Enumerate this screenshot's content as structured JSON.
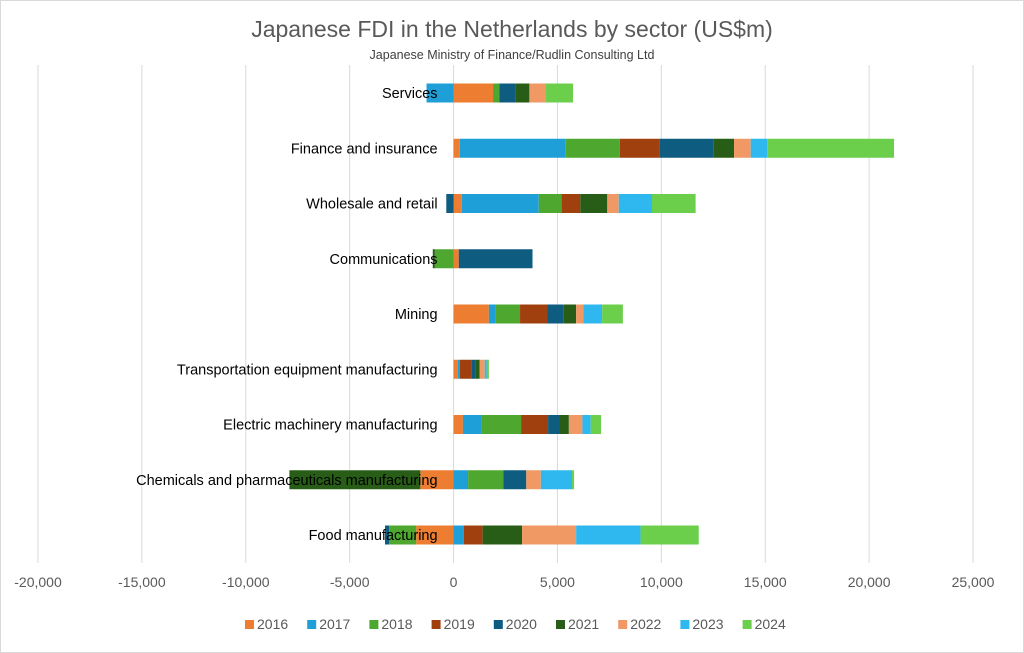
{
  "chart_data": {
    "type": "bar",
    "orientation": "horizontal",
    "stacked": true,
    "title": "Japanese FDI in the Netherlands by sector (US$m)",
    "subtitle": "Japanese Ministry of Finance/Rudlin Consulting Ltd",
    "xlabel": "",
    "ylabel": "",
    "xlim": [
      -20000,
      25000
    ],
    "xticks": [
      -20000,
      -15000,
      -10000,
      -5000,
      0,
      5000,
      10000,
      15000,
      20000,
      25000
    ],
    "xtick_labels": [
      "-20,000",
      "-15,000",
      "-10,000",
      "-5,000",
      "0",
      "5,000",
      "10,000",
      "15,000",
      "20,000",
      "25,000"
    ],
    "grid": "vertical",
    "legend_position": "bottom",
    "categories": [
      "Services",
      "Finance and insurance",
      "Wholesale and retail",
      "Communications",
      "Mining",
      "Transportation equipment manufacturing",
      "Electric machinery manufacturing",
      "Chemicals and pharmaceuticals manufacturing",
      "Food manufacturing"
    ],
    "series": [
      {
        "name": "2016",
        "color": "#ED7D31",
        "values": [
          1900,
          300,
          400,
          250,
          1700,
          200,
          450,
          -1600,
          -1800
        ]
      },
      {
        "name": "2017",
        "color": "#1E9FD8",
        "values": [
          -1300,
          5100,
          3700,
          0,
          300,
          100,
          900,
          700,
          500
        ]
      },
      {
        "name": "2018",
        "color": "#4EA72E",
        "values": [
          300,
          2600,
          1100,
          -900,
          1200,
          0,
          1900,
          1700,
          -1300
        ]
      },
      {
        "name": "2019",
        "color": "#A0400F",
        "values": [
          0,
          1900,
          900,
          0,
          1300,
          550,
          1300,
          0,
          900
        ]
      },
      {
        "name": "2020",
        "color": "#0E5C80",
        "values": [
          800,
          2600,
          -350,
          3550,
          800,
          200,
          550,
          1100,
          -200
        ]
      },
      {
        "name": "2021",
        "color": "#275D17",
        "values": [
          650,
          1000,
          1300,
          -100,
          600,
          200,
          450,
          -6300,
          1900
        ]
      },
      {
        "name": "2022",
        "color": "#F19965",
        "values": [
          800,
          800,
          550,
          0,
          350,
          250,
          650,
          700,
          2600
        ]
      },
      {
        "name": "2023",
        "color": "#2FB7EF",
        "values": [
          0,
          800,
          1600,
          0,
          900,
          100,
          400,
          1500,
          3100
        ]
      },
      {
        "name": "2024",
        "color": "#6BCF4C",
        "values": [
          1300,
          6100,
          2100,
          0,
          1000,
          100,
          500,
          100,
          2800
        ]
      }
    ]
  }
}
